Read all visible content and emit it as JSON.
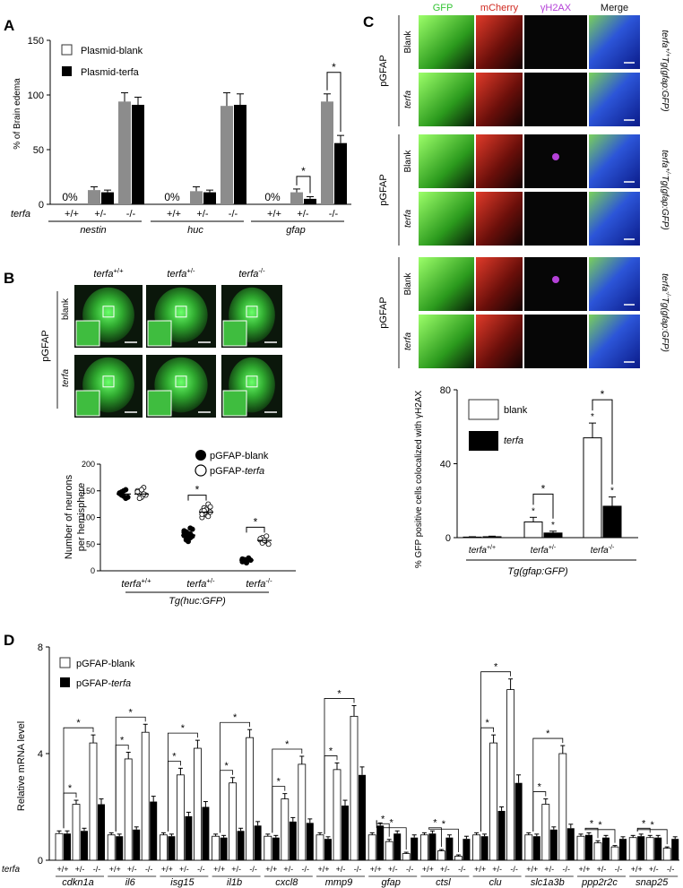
{
  "panels": {
    "A": "A",
    "B": "B",
    "C": "C",
    "D": "D"
  },
  "colors": {
    "gray": "#8c8c8c",
    "black": "#000000",
    "white": "#ffffff",
    "green": "#33c433",
    "red": "#d0281f",
    "purple": "#b441d8",
    "blue": "#2544c8"
  },
  "chart_data": [
    {
      "id": "A",
      "type": "bar",
      "ylabel": "% of Brain edema",
      "ylim": [
        0,
        150
      ],
      "yticks": [
        0,
        50,
        100,
        150
      ],
      "row_label": "terfa",
      "series": [
        {
          "name": "Plasmid-blank",
          "color": "#8c8c8c"
        },
        {
          "name": "Plasmid-terfa",
          "color": "#000000"
        }
      ],
      "groups": [
        {
          "gene": "nestin",
          "genotypes": [
            "+/+",
            "+/-",
            "-/-"
          ],
          "blank": [
            0,
            13,
            94
          ],
          "terfa": [
            0,
            11,
            91
          ],
          "blank_err": [
            0,
            3,
            8
          ],
          "terfa_err": [
            0,
            2,
            7
          ],
          "zero_label": "0%"
        },
        {
          "gene": "huc",
          "genotypes": [
            "+/+",
            "+/-",
            "-/-"
          ],
          "blank": [
            0,
            12,
            90
          ],
          "terfa": [
            0,
            11,
            91
          ],
          "blank_err": [
            0,
            4,
            12
          ],
          "terfa_err": [
            0,
            2,
            10
          ],
          "zero_label": "0%"
        },
        {
          "gene": "gfap",
          "genotypes": [
            "+/+",
            "+/-",
            "-/-"
          ],
          "blank": [
            0,
            11,
            94
          ],
          "terfa": [
            0,
            5,
            56
          ],
          "blank_err": [
            0,
            3,
            7
          ],
          "terfa_err": [
            0,
            2,
            7
          ],
          "zero_label": "0%"
        }
      ],
      "significance": [
        {
          "group": "gfap",
          "genotype": "+/-",
          "label": "*"
        },
        {
          "group": "gfap",
          "genotype": "-/-",
          "label": "*"
        }
      ]
    },
    {
      "id": "B",
      "type": "scatter",
      "ylabel": [
        "Number of neurons",
        "per hemisphere"
      ],
      "ylim": [
        0,
        200
      ],
      "yticks": [
        0,
        50,
        100,
        150,
        200
      ],
      "xlabel": "Tg(huc:GFP)",
      "categories": [
        "terfa",
        "terfa",
        "terfa"
      ],
      "category_sup": [
        "+/+",
        "+/-",
        "-/-"
      ],
      "series": [
        {
          "name": "pGFAP-blank",
          "fill": "filled",
          "values": [
            [
              145,
              148,
              140,
              152,
              138,
              146,
              142,
              150,
              136
            ],
            [
              72,
              68,
              60,
              80,
              65,
              75,
              58,
              70,
              62,
              78,
              66,
              73,
              55,
              69
            ],
            [
              22,
              18,
              15,
              24,
              20,
              17,
              21,
              19
            ]
          ],
          "means": [
            144,
            67,
            20
          ]
        },
        {
          "name": "pGFAP-terfa",
          "fill": "open",
          "values": [
            [
              150,
              145,
              138,
              156,
              142,
              148,
              136,
              152,
              144
            ],
            [
              112,
              118,
              105,
              125,
              110,
              100,
              108,
              115,
              102,
              120,
              106,
              113
            ],
            [
              58,
              62,
              55,
              65,
              50,
              60,
              52,
              57
            ]
          ],
          "means": [
            144,
            110,
            57
          ]
        }
      ],
      "significance": [
        {
          "category": 1,
          "label": "*"
        },
        {
          "category": 2,
          "label": "*"
        }
      ]
    },
    {
      "id": "C",
      "type": "bar",
      "ylabel": "% GFP positive cells colocalized with γH2AX",
      "ylim": [
        0,
        80
      ],
      "yticks": [
        0,
        40,
        80
      ],
      "xlabel": "Tg(gfap:GFP)",
      "categories": [
        "terfa",
        "terfa",
        "terfa"
      ],
      "category_sup": [
        "+/+",
        "+/-",
        "-/-"
      ],
      "series": [
        {
          "name": "blank",
          "color": "#ffffff",
          "values": [
            0.3,
            8.5,
            54
          ],
          "errors": [
            0.2,
            2.5,
            8
          ]
        },
        {
          "name": "terfa",
          "color": "#000000",
          "values": [
            0.5,
            2.5,
            17
          ],
          "errors": [
            0.3,
            1,
            5
          ]
        }
      ],
      "significance": [
        {
          "label": "*"
        },
        {
          "label": "*"
        },
        {
          "label": "*"
        },
        {
          "label": "*"
        },
        {
          "label": "*"
        },
        {
          "label": "*"
        }
      ]
    },
    {
      "id": "D",
      "type": "bar",
      "ylabel": "Relative mRNA level",
      "ylim": [
        0,
        8
      ],
      "yticks": [
        0,
        4,
        8
      ],
      "row_label": "terfa",
      "genotypes": [
        "+/+",
        "+/-",
        "-/-"
      ],
      "series": [
        {
          "name": "pGFAP-blank",
          "color": "#ffffff"
        },
        {
          "name": "pGFAP-terfa",
          "color": "#000000"
        }
      ],
      "genes": [
        {
          "gene": "cdkn1a",
          "blank": [
            1.0,
            2.1,
            4.4
          ],
          "terfa": [
            1.0,
            1.1,
            2.1
          ],
          "blank_err": [
            0.1,
            0.15,
            0.3
          ],
          "terfa_err": [
            0.1,
            0.1,
            0.2
          ]
        },
        {
          "gene": "il6",
          "blank": [
            0.95,
            3.8,
            4.8
          ],
          "terfa": [
            0.9,
            1.15,
            2.2
          ],
          "blank_err": [
            0.08,
            0.25,
            0.3
          ],
          "terfa_err": [
            0.08,
            0.1,
            0.2
          ]
        },
        {
          "gene": "isg15",
          "blank": [
            0.95,
            3.2,
            4.2
          ],
          "terfa": [
            0.9,
            1.65,
            2.0
          ],
          "blank_err": [
            0.08,
            0.25,
            0.3
          ],
          "terfa_err": [
            0.08,
            0.15,
            0.2
          ]
        },
        {
          "gene": "il1b",
          "blank": [
            0.9,
            2.9,
            4.6
          ],
          "terfa": [
            0.85,
            1.1,
            1.3
          ],
          "blank_err": [
            0.08,
            0.2,
            0.3
          ],
          "terfa_err": [
            0.08,
            0.1,
            0.15
          ]
        },
        {
          "gene": "cxcl8",
          "blank": [
            0.9,
            2.3,
            3.6
          ],
          "terfa": [
            0.85,
            1.45,
            1.4
          ],
          "blank_err": [
            0.08,
            0.2,
            0.3
          ],
          "terfa_err": [
            0.08,
            0.15,
            0.15
          ]
        },
        {
          "gene": "mmp9",
          "blank": [
            0.95,
            3.4,
            5.4
          ],
          "terfa": [
            0.8,
            2.05,
            3.2
          ],
          "blank_err": [
            0.08,
            0.25,
            0.4
          ],
          "terfa_err": [
            0.08,
            0.2,
            0.3
          ]
        },
        {
          "gene": "gfap",
          "blank": [
            0.95,
            0.7,
            0.25
          ],
          "terfa": [
            1.3,
            1.0,
            0.85
          ],
          "blank_err": [
            0.08,
            0.08,
            0.05
          ],
          "terfa_err": [
            0.1,
            0.1,
            0.1
          ]
        },
        {
          "gene": "ctsl",
          "blank": [
            0.95,
            0.35,
            0.15
          ],
          "terfa": [
            1.0,
            0.85,
            0.8
          ],
          "blank_err": [
            0.08,
            0.05,
            0.05
          ],
          "terfa_err": [
            0.1,
            0.1,
            0.1
          ]
        },
        {
          "gene": "clu",
          "blank": [
            0.95,
            4.4,
            6.4
          ],
          "terfa": [
            0.9,
            1.85,
            2.9
          ],
          "blank_err": [
            0.08,
            0.3,
            0.4
          ],
          "terfa_err": [
            0.08,
            0.15,
            0.3
          ]
        },
        {
          "gene": "slc1a3b",
          "blank": [
            0.95,
            2.1,
            4.0
          ],
          "terfa": [
            0.9,
            1.15,
            1.2
          ],
          "blank_err": [
            0.08,
            0.2,
            0.3
          ],
          "terfa_err": [
            0.08,
            0.1,
            0.15
          ]
        },
        {
          "gene": "ppp2r2c",
          "blank": [
            0.9,
            0.65,
            0.5
          ],
          "terfa": [
            0.95,
            0.85,
            0.8
          ],
          "blank_err": [
            0.08,
            0.08,
            0.05
          ],
          "terfa_err": [
            0.08,
            0.08,
            0.08
          ]
        },
        {
          "gene": "snap25",
          "blank": [
            0.85,
            0.85,
            0.45
          ],
          "terfa": [
            0.9,
            0.85,
            0.8
          ],
          "blank_err": [
            0.08,
            0.08,
            0.05
          ],
          "terfa_err": [
            0.08,
            0.08,
            0.08
          ]
        }
      ]
    }
  ],
  "panelB_images": {
    "columns": [
      "terfa",
      "terfa",
      "terfa"
    ],
    "column_sup": [
      "+/+",
      "+/-",
      "-/-"
    ],
    "rows": [
      "blank",
      "terfa"
    ],
    "construct": "pGFAP"
  },
  "panelC_images": {
    "columns": [
      "GFP",
      "mCherry",
      "γH2AX",
      "Merge"
    ],
    "column_colors": [
      "#33c433",
      "#d0281f",
      "#b441d8",
      "#111111"
    ],
    "groups": [
      {
        "construct": "pGFAP",
        "rows": [
          "Blank",
          "terfa"
        ],
        "side_label": "terfa",
        "side_sup": "+/+",
        "side_tail": "Tg(gfap:GFP)"
      },
      {
        "construct": "pGFAP",
        "rows": [
          "Blank",
          "terfa"
        ],
        "side_label": "terfa",
        "side_sup": "+/-",
        "side_tail": "Tg(gfap:GFP)"
      },
      {
        "construct": "pGFAP",
        "rows": [
          "Blank",
          "terfa"
        ],
        "side_label": "terfa",
        "side_sup": "-/-",
        "side_tail": "Tg(gfap:GFP)"
      }
    ]
  }
}
